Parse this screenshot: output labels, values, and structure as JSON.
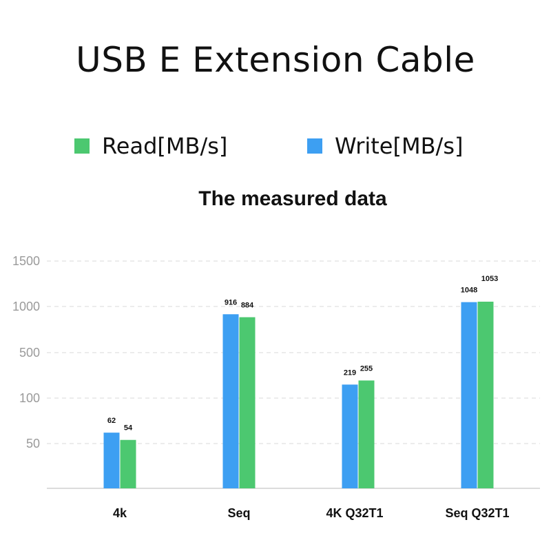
{
  "header": {
    "title": "USB E  Extension  Cable",
    "subtitle": "The measured data"
  },
  "legend": [
    {
      "label": "Read[MB/s]",
      "color": "#4cc870"
    },
    {
      "label": "Write[MB/s]",
      "color": "#3d9ff2"
    }
  ],
  "chart_data": {
    "type": "bar",
    "title": "The measured data",
    "categories": [
      "4k",
      "Seq",
      "4K Q32T1",
      "Seq Q32T1"
    ],
    "series": [
      {
        "name": "Write[MB/s]",
        "color": "#3d9ff2",
        "values": [
          62,
          916,
          219,
          1048
        ]
      },
      {
        "name": "Read[MB/s]",
        "color": "#4cc870",
        "values": [
          54,
          884,
          255,
          1053
        ]
      }
    ],
    "y_ticks": [
      50,
      100,
      500,
      1000,
      1500
    ],
    "y_tick_labels": [
      "50",
      "100",
      "500",
      "1000",
      "1500"
    ],
    "ylim": [
      0,
      1500
    ],
    "grid": true,
    "legend_position": "top"
  }
}
